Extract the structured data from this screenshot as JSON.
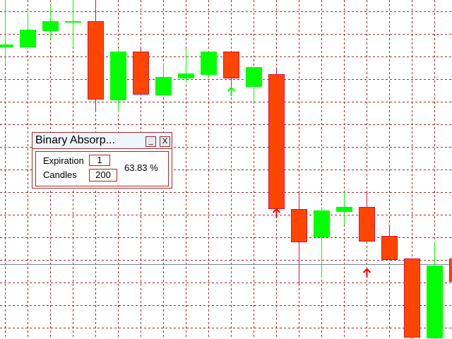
{
  "chart": {
    "colors": {
      "bull": "#00ff00",
      "bear": "#ff4500",
      "bear_border": "#dc143c",
      "grid": "#a52a2a",
      "bid_line": "#778899",
      "background": "#ffffff"
    },
    "bid_price": 106,
    "candles": [
      {
        "o": 414,
        "h": 480,
        "l": 389,
        "c": 417
      },
      {
        "o": 414,
        "h": 462,
        "l": 410,
        "c": 438
      },
      {
        "o": 437,
        "h": 473,
        "l": 425,
        "c": 450
      },
      {
        "o": 449,
        "h": 480,
        "l": 413,
        "c": 450
      },
      {
        "o": 450,
        "h": 480,
        "l": 322,
        "c": 340
      },
      {
        "o": 339,
        "h": 410,
        "l": 322,
        "c": 407
      },
      {
        "o": 407,
        "h": 414,
        "l": 347,
        "c": 347
      },
      {
        "o": 346,
        "h": 389,
        "l": 346,
        "c": 371
      },
      {
        "o": 370,
        "h": 411,
        "l": 363,
        "c": 376
      },
      {
        "o": 375,
        "h": 407,
        "l": 370,
        "c": 407
      },
      {
        "o": 407,
        "h": 407,
        "l": 358,
        "c": 370
      },
      {
        "o": 358,
        "h": 385,
        "l": 334,
        "c": 385
      },
      {
        "o": 375,
        "h": 385,
        "l": 185,
        "c": 185
      },
      {
        "o": 184,
        "h": 208,
        "l": 75,
        "c": 138
      },
      {
        "o": 145,
        "h": 187,
        "l": 87,
        "c": 182
      },
      {
        "o": 181,
        "h": 208,
        "l": 162,
        "c": 187
      },
      {
        "o": 187,
        "h": 210,
        "l": 139,
        "c": 139
      },
      {
        "o": 146,
        "h": 162,
        "l": 113,
        "c": 113
      },
      {
        "o": 114,
        "h": 114,
        "l": 0,
        "c": 3
      },
      {
        "o": 2,
        "h": 138,
        "l": 0,
        "c": 104
      },
      {
        "o": 114,
        "h": 114,
        "l": 82,
        "c": 82
      }
    ],
    "arrows": [
      {
        "index": 10,
        "price": 356,
        "color": "#00ff00",
        "direction": "up"
      },
      {
        "index": 12,
        "price": 184,
        "color": "#ff0000",
        "direction": "up"
      },
      {
        "index": 16,
        "price": 99,
        "color": "#ff0000",
        "direction": "up"
      }
    ]
  },
  "panel": {
    "title": "Binary Absorp...",
    "minimize_label": "_",
    "close_label": "X",
    "expiration_label": "Expiration",
    "expiration_value": "1",
    "candles_label": "Candles",
    "candles_value": "200",
    "result": "63.83 %"
  }
}
